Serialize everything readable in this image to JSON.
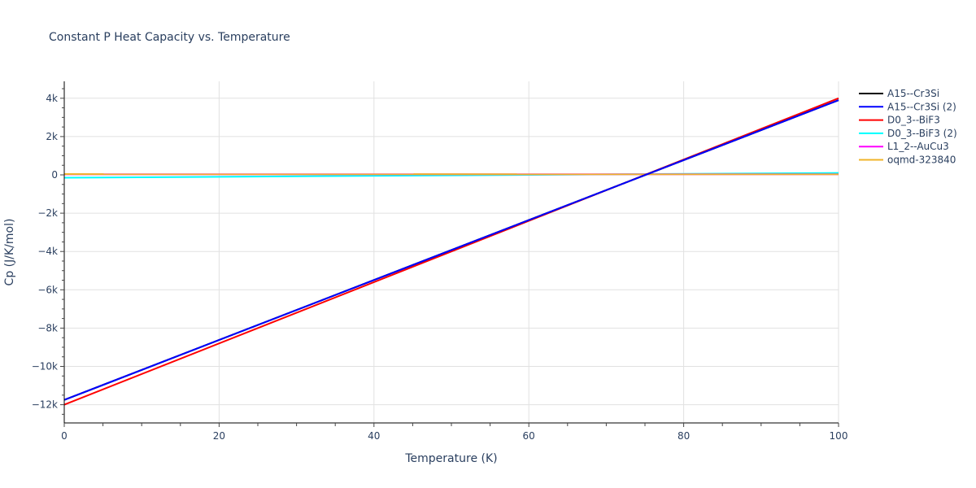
{
  "chart_data": {
    "type": "line",
    "title": "Constant P Heat Capacity vs. Temperature",
    "xlabel": "Temperature (K)",
    "ylabel": "Cp (J/K/mol)",
    "xlim": [
      0,
      100
    ],
    "ylim": [
      -13000,
      4900
    ],
    "x_ticks": [
      0,
      20,
      40,
      60,
      80,
      100
    ],
    "x_tick_labels": [
      "0",
      "20",
      "40",
      "60",
      "80",
      "100"
    ],
    "y_ticks": [
      4000,
      2000,
      0,
      -2000,
      -4000,
      -6000,
      -8000,
      -10000,
      -12000
    ],
    "y_tick_labels": [
      "4k",
      "2k",
      "0",
      "−2k",
      "−4k",
      "−6k",
      "−8k",
      "−10k",
      "−12k"
    ],
    "grid": true,
    "legend_position": "right",
    "series": [
      {
        "name": "A15--Cr3Si",
        "color": "#000000",
        "x": [
          0,
          100
        ],
        "values": [
          -11750,
          3900
        ]
      },
      {
        "name": "A15--Cr3Si (2)",
        "color": "#0000ff",
        "x": [
          0,
          100
        ],
        "values": [
          -11750,
          3900
        ]
      },
      {
        "name": "D0_3--BiF3",
        "color": "#ff0000",
        "x": [
          0,
          100
        ],
        "values": [
          -12000,
          4000
        ]
      },
      {
        "name": "D0_3--BiF3 (2)",
        "color": "#00ffff",
        "x": [
          0,
          100
        ],
        "values": [
          -150,
          100
        ]
      },
      {
        "name": "L1_2--AuCu3",
        "color": "#ff00ff",
        "x": [
          0,
          100
        ],
        "values": [
          30,
          30
        ]
      },
      {
        "name": "oqmd-323840",
        "color": "#f0b429",
        "x": [
          0,
          100
        ],
        "values": [
          40,
          30
        ]
      }
    ]
  }
}
